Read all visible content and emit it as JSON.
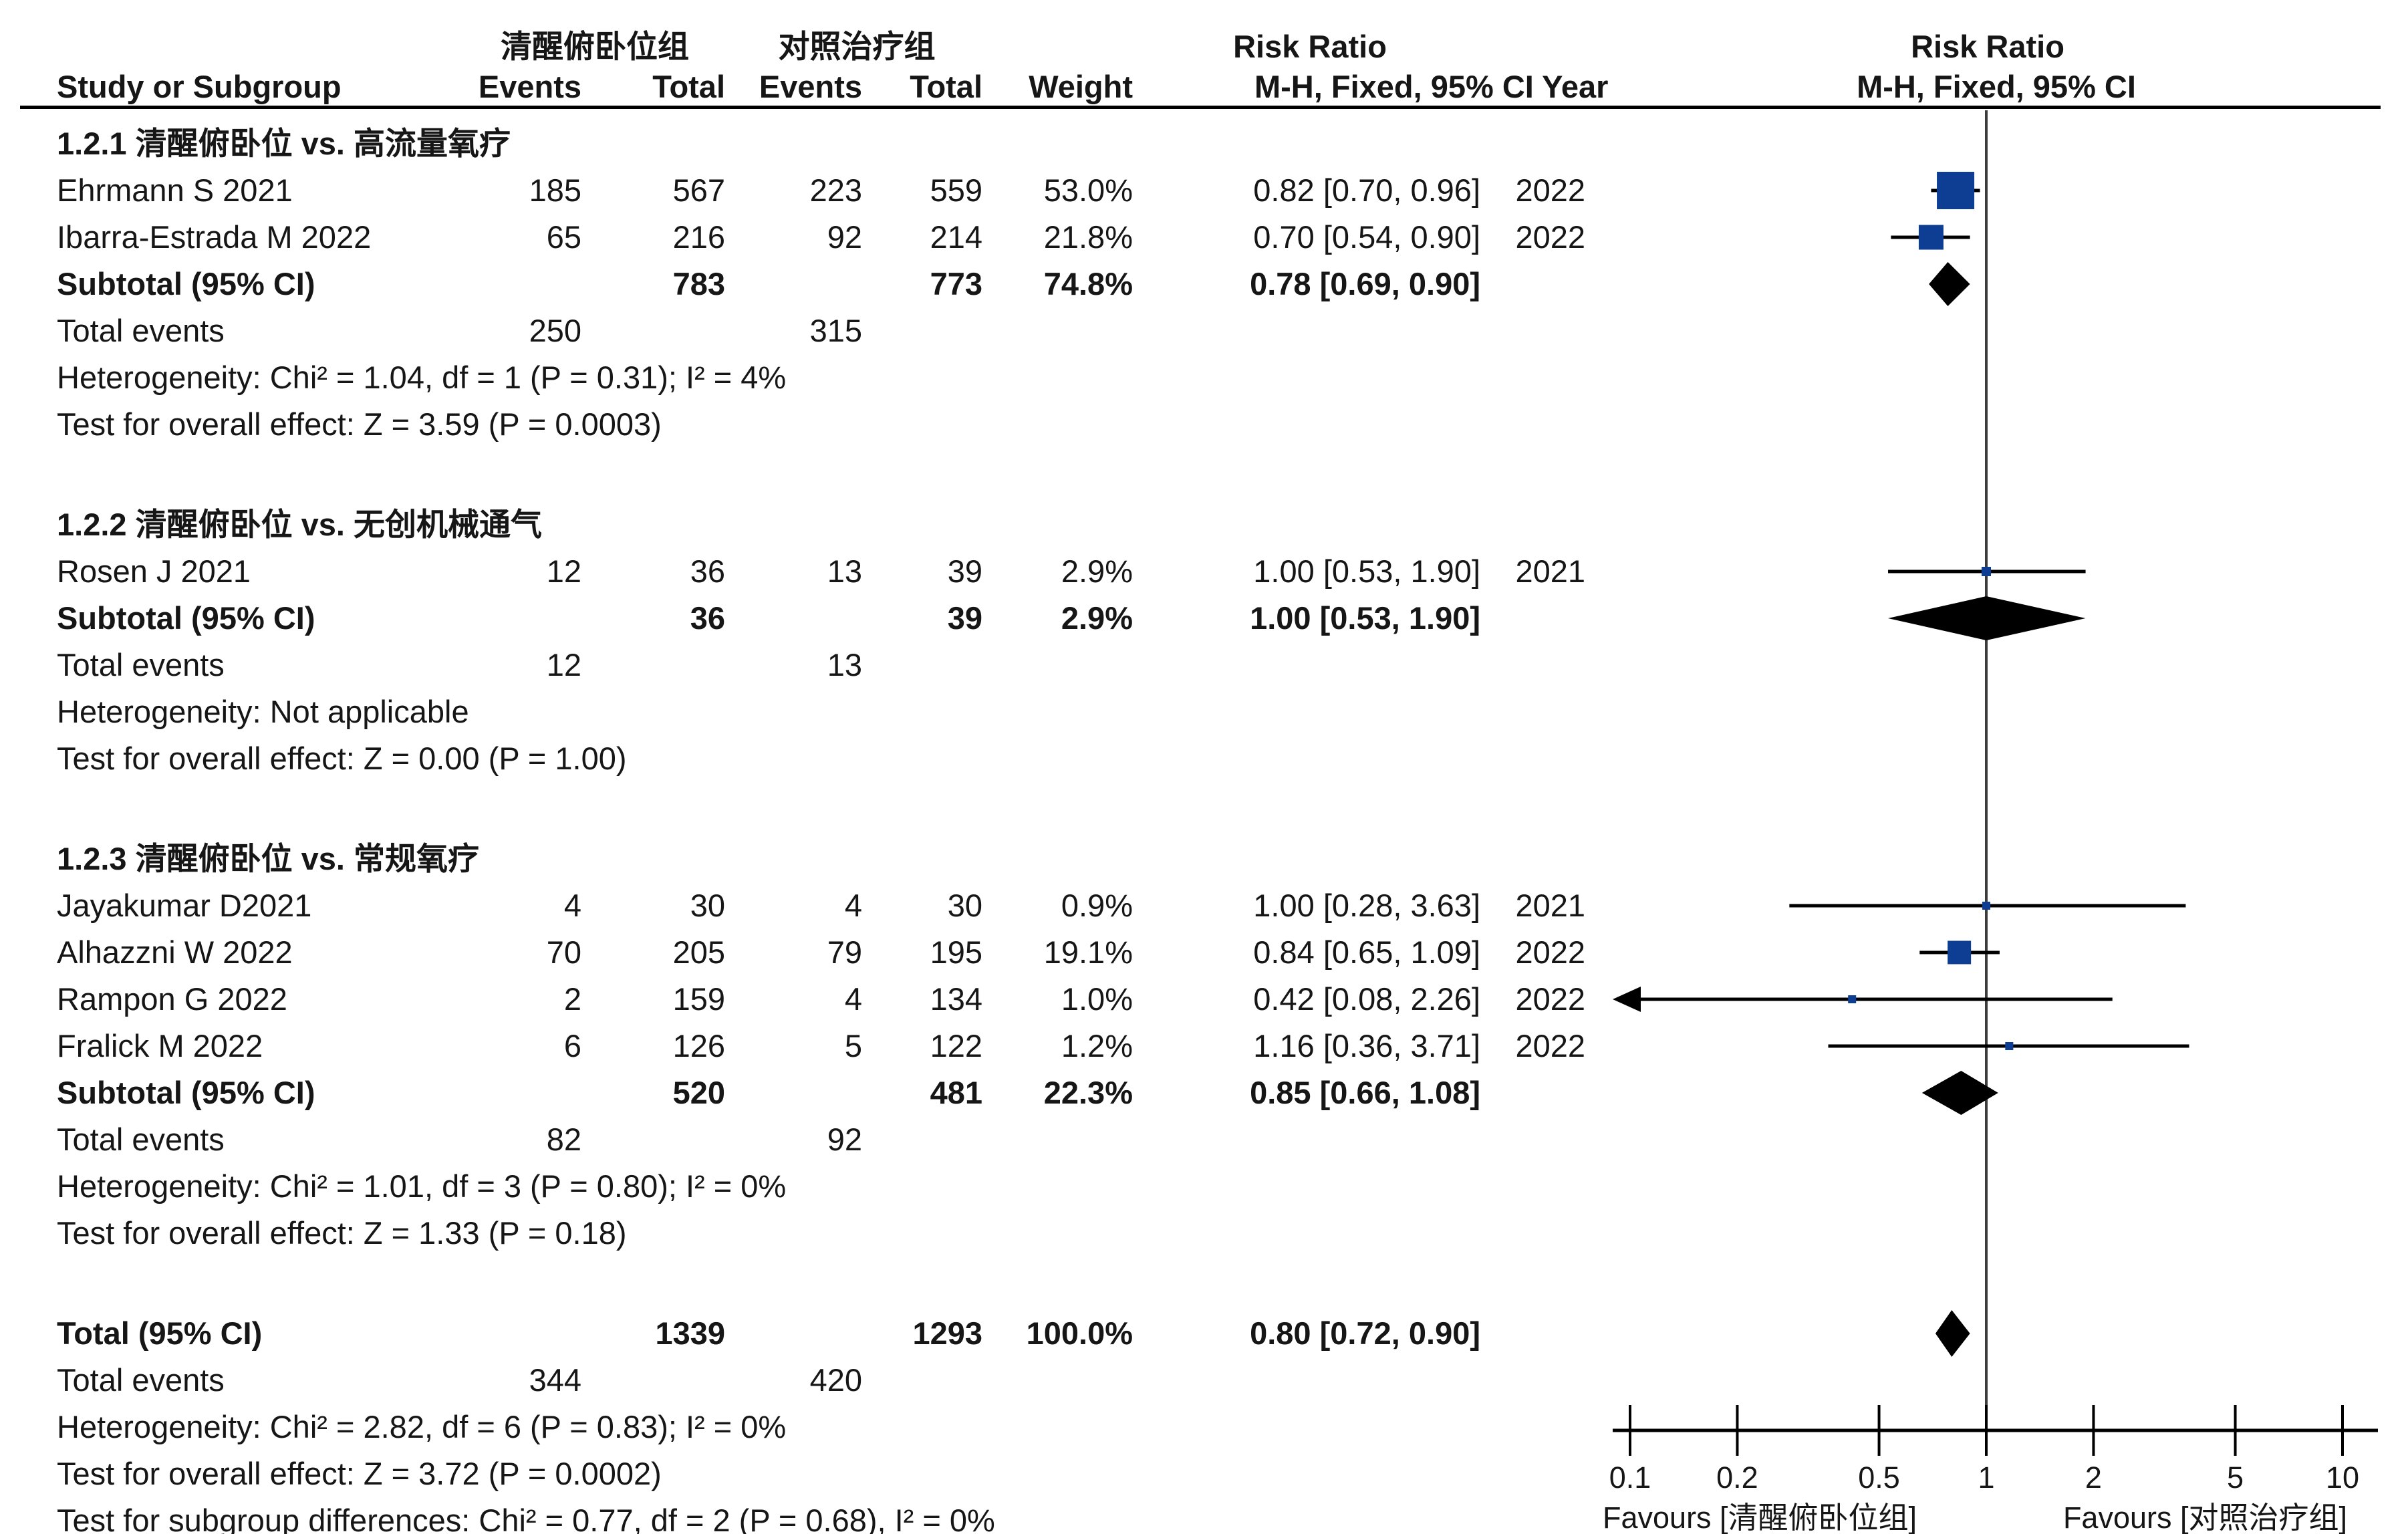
{
  "header": {
    "col_study": "Study or Subgroup",
    "group1": "清醒俯卧位组",
    "group2": "对照治疗组",
    "col_events": "Events",
    "col_total": "Total",
    "col_weight": "Weight",
    "rr_col_title": "Risk Ratio",
    "rr_col_sub": "M-H, Fixed, 95% CI Year",
    "plot_title": "Risk Ratio",
    "plot_sub": "M-H, Fixed, 95% CI"
  },
  "chart_data": {
    "type": "forest",
    "effect_measure": "Risk Ratio, M-H, Fixed, 95% CI",
    "x_axis": {
      "scale": "log",
      "ticks": [
        0.1,
        0.2,
        0.5,
        1,
        2,
        5,
        10
      ],
      "range": [
        0.1,
        10
      ],
      "favours_left": "Favours [清醒俯卧位组]",
      "favours_right": "Favours [对照治疗组]"
    },
    "colors": {
      "marker_blue": "#0D3E94",
      "diamond_black": "#000000",
      "center_line": "#3C3C3C",
      "text": "#161616"
    },
    "sections": [
      {
        "id": "1.2.1",
        "title": "1.2.1 清醒俯卧位 vs. 高流量氧疗",
        "studies": [
          {
            "name": "Ehrmann S 2021",
            "events1": "185",
            "total1": "567",
            "events2": "223",
            "total2": "559",
            "weight": "53.0%",
            "rr": 0.82,
            "ci_lo": 0.7,
            "ci_hi": 0.96,
            "rr_text": "0.82 [0.70, 0.96]",
            "year": "2022"
          },
          {
            "name": "Ibarra-Estrada M 2022",
            "events1": "65",
            "total1": "216",
            "events2": "92",
            "total2": "214",
            "weight": "21.8%",
            "rr": 0.7,
            "ci_lo": 0.54,
            "ci_hi": 0.9,
            "rr_text": "0.70 [0.54, 0.90]",
            "year": "2022"
          }
        ],
        "subtotal": {
          "label": "Subtotal (95% CI)",
          "total1": "783",
          "total2": "773",
          "weight": "74.8%",
          "rr": 0.78,
          "ci_lo": 0.69,
          "ci_hi": 0.9,
          "rr_text": "0.78 [0.69, 0.90]"
        },
        "total_events": {
          "label": "Total events",
          "events1": "250",
          "events2": "315"
        },
        "heterogeneity": "Heterogeneity: Chi² = 1.04, df = 1 (P = 0.31); I² = 4%",
        "overall_effect": "Test for overall effect: Z = 3.59 (P = 0.0003)"
      },
      {
        "id": "1.2.2",
        "title": "1.2.2 清醒俯卧位 vs. 无创机械通气",
        "studies": [
          {
            "name": "Rosen J 2021",
            "events1": "12",
            "total1": "36",
            "events2": "13",
            "total2": "39",
            "weight": "2.9%",
            "rr": 1.0,
            "ci_lo": 0.53,
            "ci_hi": 1.9,
            "rr_text": "1.00 [0.53, 1.90]",
            "year": "2021"
          }
        ],
        "subtotal": {
          "label": "Subtotal (95% CI)",
          "total1": "36",
          "total2": "39",
          "weight": "2.9%",
          "rr": 1.0,
          "ci_lo": 0.53,
          "ci_hi": 1.9,
          "rr_text": "1.00 [0.53, 1.90]"
        },
        "total_events": {
          "label": "Total events",
          "events1": "12",
          "events2": "13"
        },
        "heterogeneity": "Heterogeneity: Not applicable",
        "overall_effect": "Test for overall effect: Z = 0.00 (P = 1.00)"
      },
      {
        "id": "1.2.3",
        "title": "1.2.3 清醒俯卧位 vs. 常规氧疗",
        "studies": [
          {
            "name": "Jayakumar D2021",
            "events1": "4",
            "total1": "30",
            "events2": "4",
            "total2": "30",
            "weight": "0.9%",
            "rr": 1.0,
            "ci_lo": 0.28,
            "ci_hi": 3.63,
            "rr_text": "1.00 [0.28, 3.63]",
            "year": "2021"
          },
          {
            "name": "Alhazzni W 2022",
            "events1": "70",
            "total1": "205",
            "events2": "79",
            "total2": "195",
            "weight": "19.1%",
            "rr": 0.84,
            "ci_lo": 0.65,
            "ci_hi": 1.09,
            "rr_text": "0.84 [0.65, 1.09]",
            "year": "2022"
          },
          {
            "name": "Rampon G 2022",
            "events1": "2",
            "total1": "159",
            "events2": "4",
            "total2": "134",
            "weight": "1.0%",
            "rr": 0.42,
            "ci_lo": 0.08,
            "ci_hi": 2.26,
            "rr_text": "0.42 [0.08, 2.26]",
            "year": "2022",
            "arrow_left": true
          },
          {
            "name": "Fralick M 2022",
            "events1": "6",
            "total1": "126",
            "events2": "5",
            "total2": "122",
            "weight": "1.2%",
            "rr": 1.16,
            "ci_lo": 0.36,
            "ci_hi": 3.71,
            "rr_text": "1.16 [0.36, 3.71]",
            "year": "2022"
          }
        ],
        "subtotal": {
          "label": "Subtotal (95% CI)",
          "total1": "520",
          "total2": "481",
          "weight": "22.3%",
          "rr": 0.85,
          "ci_lo": 0.66,
          "ci_hi": 1.08,
          "rr_text": "0.85 [0.66, 1.08]"
        },
        "total_events": {
          "label": "Total events",
          "events1": "82",
          "events2": "92"
        },
        "heterogeneity": "Heterogeneity: Chi² = 1.01, df = 3 (P = 0.80); I² = 0%",
        "overall_effect": "Test for overall effect: Z = 1.33 (P = 0.18)"
      }
    ],
    "total": {
      "label": "Total (95% CI)",
      "total1": "1339",
      "total2": "1293",
      "weight": "100.0%",
      "rr": 0.8,
      "ci_lo": 0.72,
      "ci_hi": 0.9,
      "rr_text": "0.80 [0.72, 0.90]",
      "total_events": {
        "label": "Total events",
        "events1": "344",
        "events2": "420"
      },
      "heterogeneity": "Heterogeneity: Chi² = 2.82, df = 6 (P = 0.83); I² = 0%",
      "overall_effect": "Test for overall effect: Z = 3.72 (P = 0.0002)",
      "subgroup_test": "Test for subgroup differences: Chi² = 0.77, df = 2 (P = 0.68), I² = 0%"
    }
  }
}
